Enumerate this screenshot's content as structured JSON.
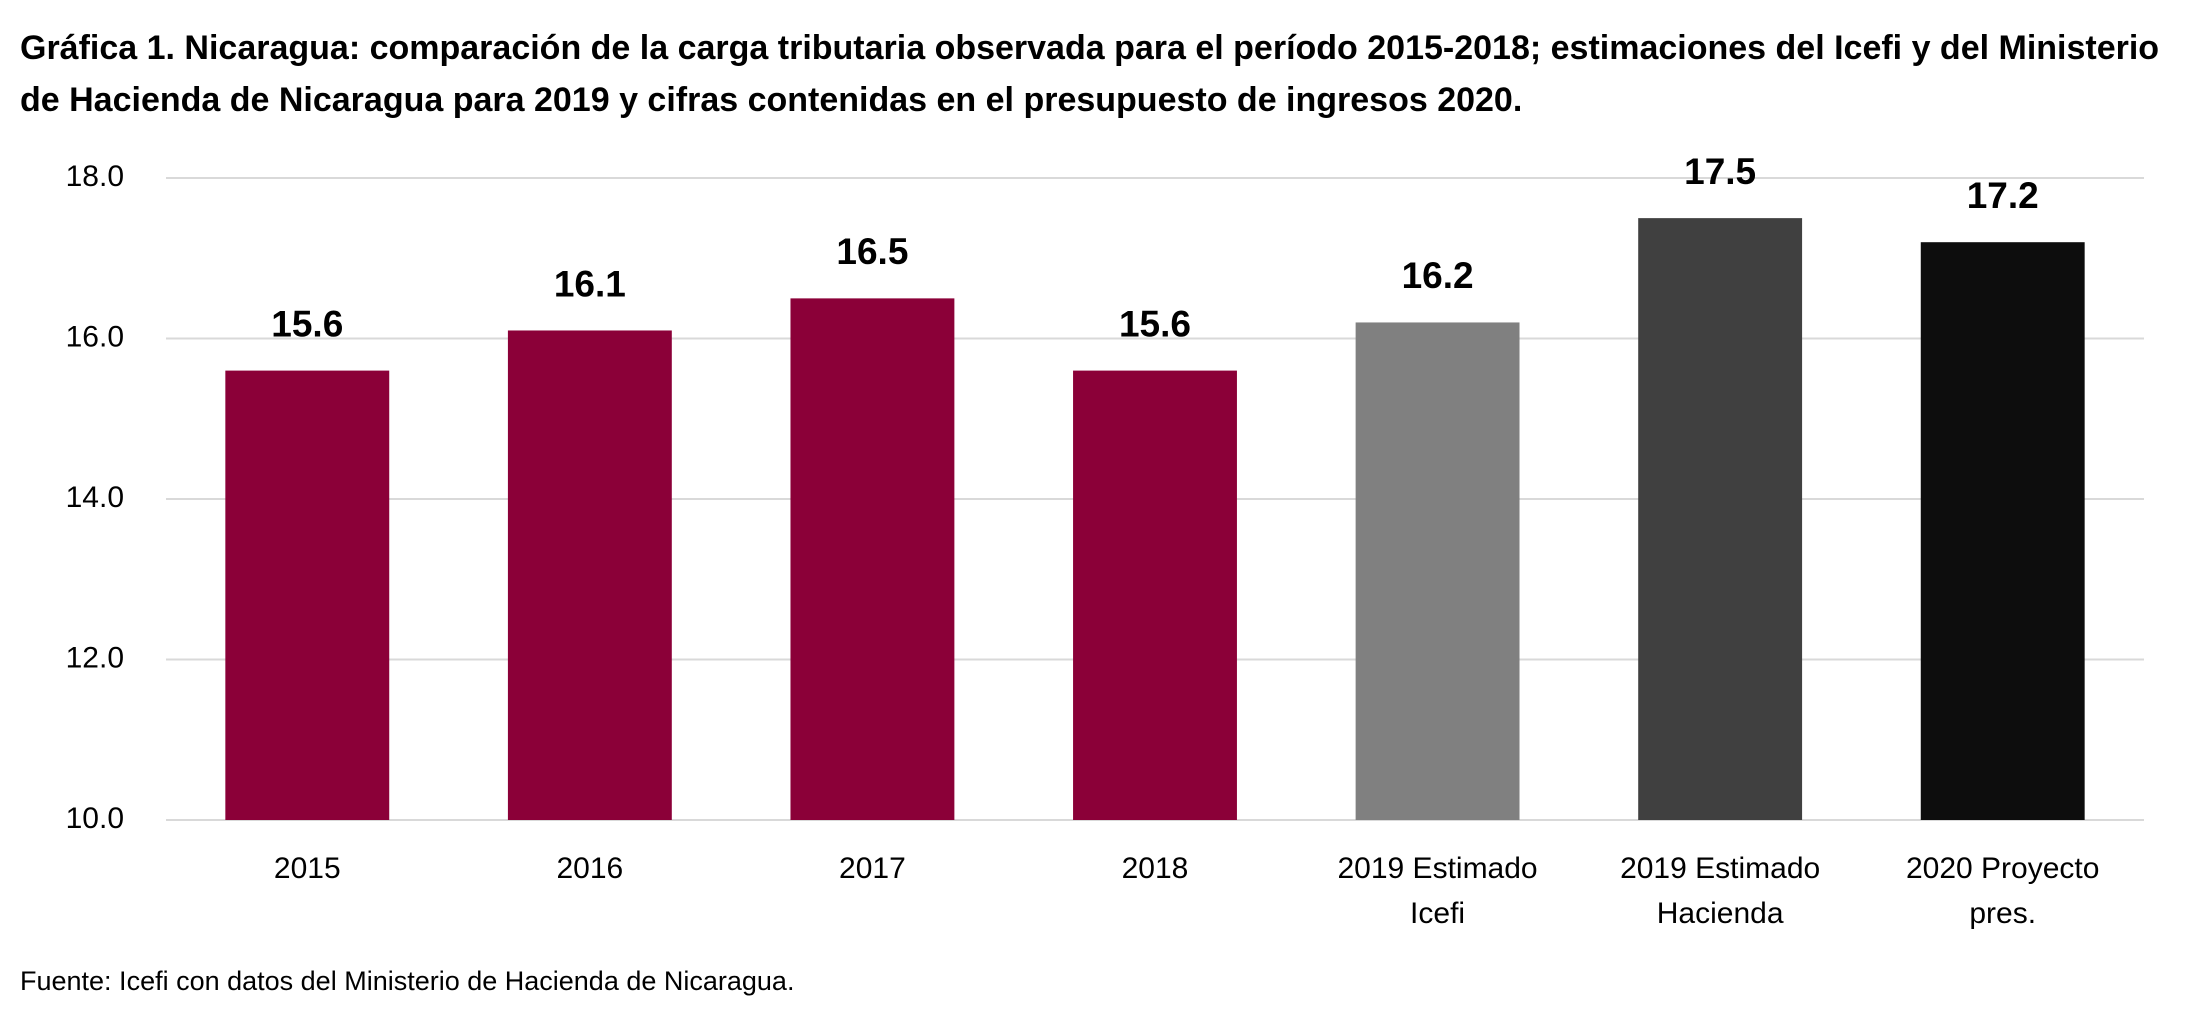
{
  "chart_data": {
    "type": "bar",
    "title": "Gráfica 1. Nicaragua: comparación de la carga tributaria observada para el período 2015-2018; estimaciones del Icefi y del Ministerio de Hacienda de Nicaragua para 2019 y cifras contenidas en el presupuesto de ingresos 2020.",
    "source": "Fuente: Icefi con datos del Ministerio de Hacienda de Nicaragua.",
    "categories": [
      "2015",
      "2016",
      "2017",
      "2018",
      "2019 Estimado Icefi",
      "2019 Estimado Hacienda",
      "2020 Proyecto pres."
    ],
    "values": [
      15.6,
      16.1,
      16.5,
      15.6,
      16.2,
      17.5,
      17.2
    ],
    "colors": [
      "#8b0038",
      "#8b0038",
      "#8b0038",
      "#8b0038",
      "#808080",
      "#404040",
      "#0d0d0d"
    ],
    "ylim": [
      10,
      18
    ],
    "yticks": [
      {
        "value": 10,
        "label": "10.0"
      },
      {
        "value": 12,
        "label": "12.0"
      },
      {
        "value": 14,
        "label": "14.0"
      },
      {
        "value": 16,
        "label": "16.0"
      },
      {
        "value": 18,
        "label": "18.0"
      }
    ],
    "grid": true
  }
}
